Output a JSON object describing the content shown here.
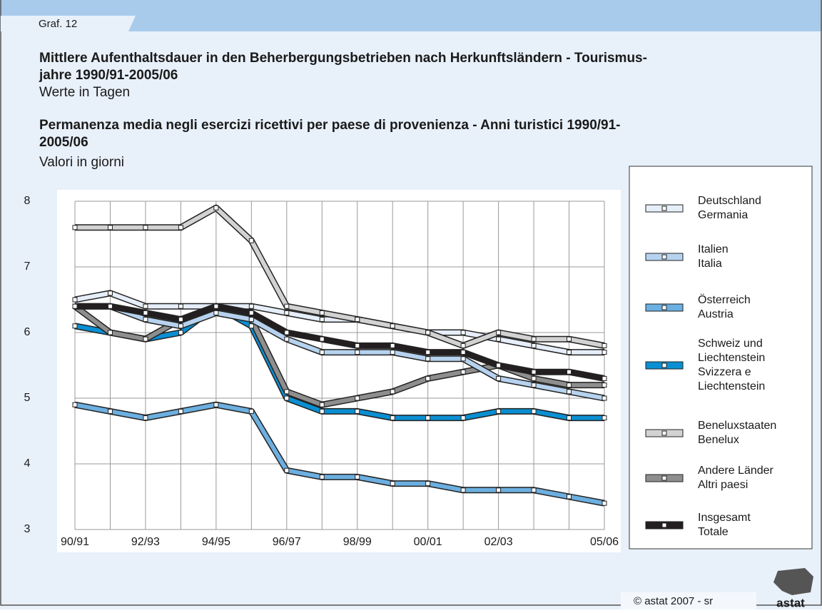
{
  "header": {
    "tab": "Graf. 12",
    "title_de": [
      "Mittlere Aufenthaltsdauer in den Beherbergungsbetrieben nach Herkunftsländern - Tourismus-",
      "jahre 1990/91-2005/06"
    ],
    "subtitle_de": "Werte in Tagen",
    "title_it": [
      "Permanenza media negli esercizi ricettivi per paese di provenienza - Anni turistici 1990/91-",
      "2005/06"
    ],
    "subtitle_it": "Valori in giorni"
  },
  "footer": {
    "copyright": "© astat 2007 - sr",
    "logo": "astat"
  },
  "chart_data": {
    "type": "line",
    "categories": [
      "90/91",
      null,
      "92/93",
      null,
      "94/95",
      null,
      "96/97",
      null,
      "98/99",
      null,
      "00/01",
      null,
      "02/03",
      null,
      null,
      "05/06"
    ],
    "ylim": [
      3,
      8
    ],
    "yticks": [
      3,
      4,
      5,
      6,
      7,
      8
    ],
    "grid": true,
    "series": [
      {
        "name": [
          "Deutschland",
          "Germania"
        ],
        "color": "#e6eefa",
        "values": [
          6.5,
          6.6,
          6.4,
          6.4,
          6.4,
          6.4,
          6.3,
          6.2,
          6.2,
          6.1,
          6.0,
          6.0,
          5.9,
          5.8,
          5.7,
          5.7
        ]
      },
      {
        "name": [
          "Italien",
          "Italia"
        ],
        "color": "#b6d2ee",
        "values": [
          6.4,
          6.4,
          6.2,
          6.1,
          6.3,
          6.2,
          5.9,
          5.7,
          5.7,
          5.7,
          5.6,
          5.6,
          5.3,
          5.2,
          5.1,
          5.0
        ]
      },
      {
        "name": [
          "Österreich",
          "Austria"
        ],
        "color": "#6cafe0",
        "values": [
          4.9,
          4.8,
          4.7,
          4.8,
          4.9,
          4.8,
          3.9,
          3.8,
          3.8,
          3.7,
          3.7,
          3.6,
          3.6,
          3.6,
          3.5,
          3.4
        ]
      },
      {
        "name": [
          "Schweiz und",
          "Liechtenstein",
          "Svizzera e",
          "Liechtenstein"
        ],
        "color": "#0a8fd2",
        "values": [
          6.1,
          6.0,
          5.9,
          6.0,
          6.4,
          6.1,
          5.0,
          4.8,
          4.8,
          4.7,
          4.7,
          4.7,
          4.8,
          4.8,
          4.7,
          4.7
        ]
      },
      {
        "name": [
          "Beneluxstaaten",
          "Benelux"
        ],
        "color": "#d2d2d2",
        "values": [
          7.6,
          7.6,
          7.6,
          7.6,
          7.9,
          7.4,
          6.4,
          6.3,
          6.2,
          6.1,
          6.0,
          5.8,
          6.0,
          5.9,
          5.9,
          5.8
        ]
      },
      {
        "name": [
          "Andere Länder",
          "Altri paesi"
        ],
        "color": "#8e8e8e",
        "values": [
          6.4,
          6.0,
          5.9,
          6.2,
          6.4,
          6.2,
          5.1,
          4.9,
          5.0,
          5.1,
          5.3,
          5.4,
          5.5,
          5.3,
          5.2,
          5.2
        ]
      },
      {
        "name": [
          "Insgesamt",
          "Totale"
        ],
        "color": "#231f20",
        "values": [
          6.4,
          6.4,
          6.3,
          6.2,
          6.4,
          6.3,
          6.0,
          5.9,
          5.8,
          5.8,
          5.7,
          5.7,
          5.5,
          5.4,
          5.4,
          5.3
        ]
      }
    ]
  }
}
